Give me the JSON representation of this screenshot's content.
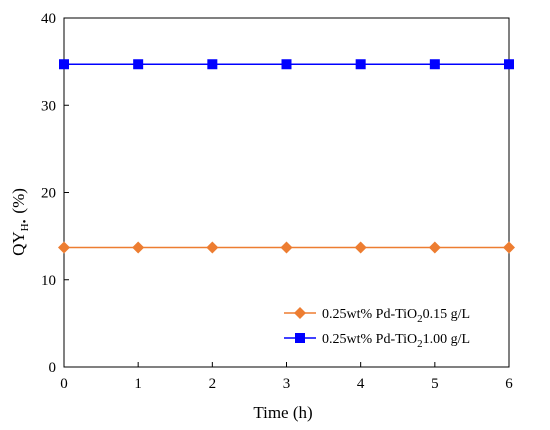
{
  "chart_data": {
    "type": "line",
    "xlabel": "Time (h)",
    "ylabel": {
      "prefix": "QY",
      "subscript": "H•",
      "suffix": "(%)"
    },
    "xlim": [
      0,
      6
    ],
    "ylim": [
      0,
      40
    ],
    "xticks": [
      0,
      1,
      2,
      3,
      4,
      5,
      6
    ],
    "yticks": [
      0,
      10,
      20,
      30,
      40
    ],
    "grid": false,
    "legend_position": "bottom-right",
    "series": [
      {
        "name": "0.25wt% Pd-TiO",
        "name_subscript": "2",
        "name_suffix": "0.15 g/L",
        "color": "#ED7D31",
        "marker": "diamond",
        "x": [
          0,
          1,
          2,
          3,
          4,
          5,
          6
        ],
        "y": [
          13.7,
          13.7,
          13.7,
          13.7,
          13.7,
          13.7,
          13.7
        ]
      },
      {
        "name": "0.25wt% Pd-TiO",
        "name_subscript": "2",
        "name_suffix": "1.00 g/L",
        "color": "#0000FF",
        "marker": "square",
        "x": [
          0,
          1,
          2,
          3,
          4,
          5,
          6
        ],
        "y": [
          34.7,
          34.7,
          34.7,
          34.7,
          34.7,
          34.7,
          34.7
        ]
      }
    ]
  }
}
